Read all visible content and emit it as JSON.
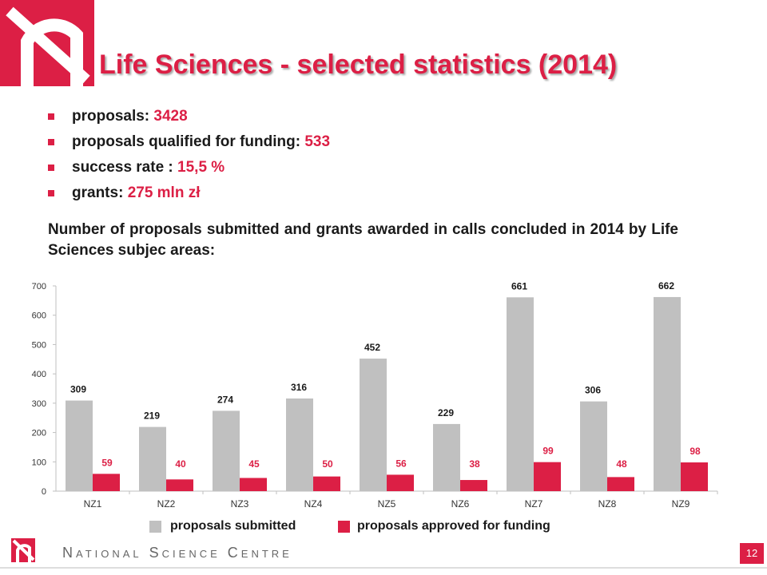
{
  "header": {
    "title": "Life Sciences  - selected statistics  (2014)",
    "accent_color": "#dc1f45",
    "logo_icon": "ncn-logo-icon"
  },
  "stats": [
    {
      "label": "proposals:",
      "value": "3428"
    },
    {
      "label": "proposals qualified for funding:",
      "value": "533"
    },
    {
      "label": "success rate :",
      "value": "15,5 %"
    },
    {
      "label": "grants:",
      "value": "275 mln zł"
    }
  ],
  "intro": "Number of proposals submitted and grants awarded in calls concluded in 2014 by Life Sciences subjec areas:",
  "chart_data": {
    "type": "bar",
    "categories": [
      "NZ1",
      "NZ2",
      "NZ3",
      "NZ4",
      "NZ5",
      "NZ6",
      "NZ7",
      "NZ8",
      "NZ9"
    ],
    "series": [
      {
        "name": "proposals submitted",
        "values": [
          309,
          219,
          274,
          316,
          452,
          229,
          661,
          306,
          662
        ],
        "color": "#c0c0c0",
        "label_color": "#1a1a1a"
      },
      {
        "name": "proposals approved for funding",
        "values": [
          59,
          40,
          45,
          50,
          56,
          38,
          99,
          48,
          98
        ],
        "color": "#dc1f45",
        "label_color": "#dc1f45"
      }
    ],
    "ylim": [
      0,
      700
    ],
    "yticks": [
      0,
      100,
      200,
      300,
      400,
      500,
      600,
      700
    ],
    "grid": false,
    "legend": "bottom"
  },
  "footer": {
    "org_name": "National Science Centre",
    "page_number": "12"
  }
}
